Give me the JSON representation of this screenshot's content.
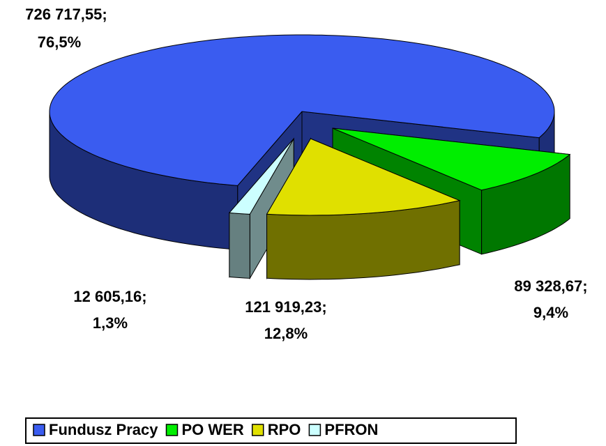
{
  "chart_data": {
    "type": "pie",
    "categories": [
      "Fundusz Pracy",
      "PO WER",
      "RPO",
      "PFRON"
    ],
    "values": [
      726717.55,
      89328.67,
      121919.23,
      12605.16
    ],
    "value_labels": [
      "726 717,55;",
      "89 328,67;",
      "121 919,23;",
      "12 605,16;"
    ],
    "percent_labels": [
      "76,5%",
      "9,4%",
      "12,8%",
      "1,3%"
    ],
    "colors": [
      "#3a5cf0",
      "#00ee00",
      "#e0e000",
      "#ccffff"
    ],
    "legend": "bottom"
  }
}
